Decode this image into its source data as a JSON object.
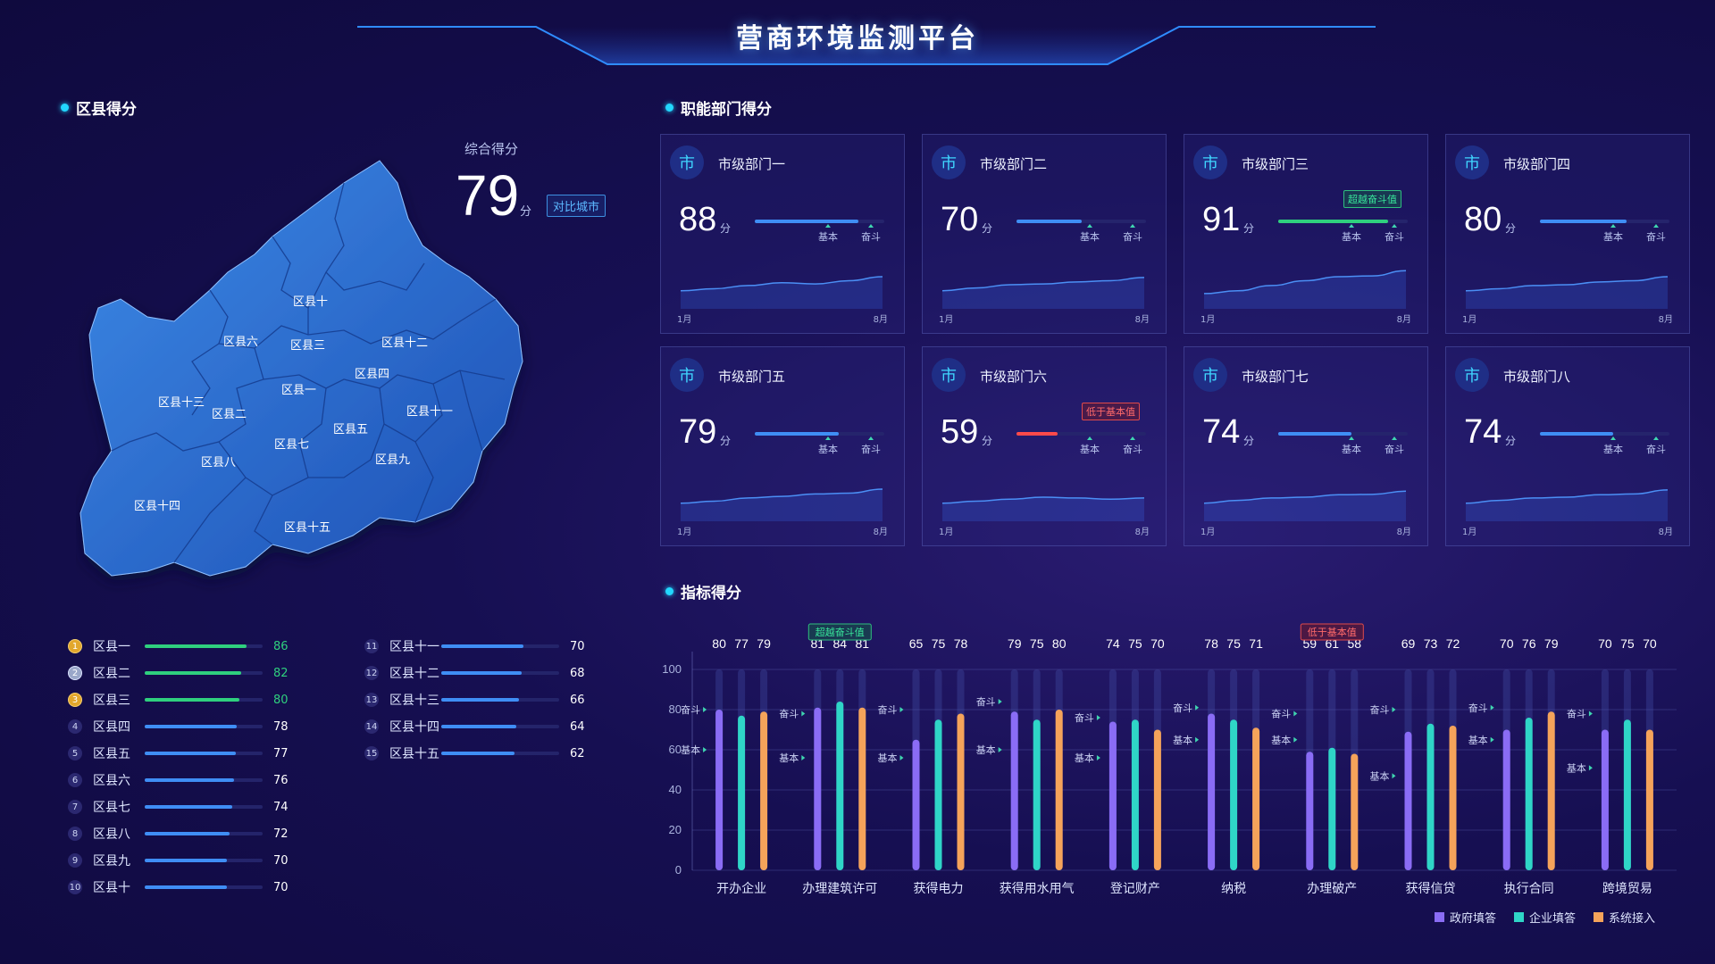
{
  "header": {
    "title": "营商环境监测平台"
  },
  "district_section": {
    "title": "区县得分",
    "overall_label": "综合得分",
    "overall_score": "79",
    "unit": "分",
    "compare_button": "对比城市",
    "map_labels": [
      "区县一",
      "区县二",
      "区县三",
      "区县四",
      "区县五",
      "区县六",
      "区县七",
      "区县八",
      "区县九",
      "区县十",
      "区县十一",
      "区县十二",
      "区县十三",
      "区县十四",
      "区县十五"
    ],
    "ranking": [
      {
        "rank": "1",
        "name": "区县一",
        "score": 86
      },
      {
        "rank": "2",
        "name": "区县二",
        "score": 82
      },
      {
        "rank": "3",
        "name": "区县三",
        "score": 80
      },
      {
        "rank": "4",
        "name": "区县四",
        "score": 78
      },
      {
        "rank": "5",
        "name": "区县五",
        "score": 77
      },
      {
        "rank": "6",
        "name": "区县六",
        "score": 76
      },
      {
        "rank": "7",
        "name": "区县七",
        "score": 74
      },
      {
        "rank": "8",
        "name": "区县八",
        "score": 72
      },
      {
        "rank": "9",
        "name": "区县九",
        "score": 70
      },
      {
        "rank": "10",
        "name": "区县十",
        "score": 70
      },
      {
        "rank": "11",
        "name": "区县十一",
        "score": 70
      },
      {
        "rank": "12",
        "name": "区县十二",
        "score": 68
      },
      {
        "rank": "13",
        "name": "区县十三",
        "score": 66
      },
      {
        "rank": "14",
        "name": "区县十四",
        "score": 64
      },
      {
        "rank": "15",
        "name": "区县十五",
        "score": 62
      }
    ],
    "colors": {
      "top": "#2fd07e",
      "normal": "#3f8ef5"
    }
  },
  "dept_section": {
    "title": "职能部门得分",
    "icon_char": "市",
    "unit": "分",
    "mark_basic": "基本",
    "mark_strive": "奋斗",
    "month_start": "1月",
    "month_end": "8月",
    "cards": [
      {
        "name": "市级部门一",
        "score": 88,
        "status": "normal",
        "badge": ""
      },
      {
        "name": "市级部门二",
        "score": 70,
        "status": "normal",
        "badge": ""
      },
      {
        "name": "市级部门三",
        "score": 91,
        "status": "above",
        "badge": "超越奋斗值"
      },
      {
        "name": "市级部门四",
        "score": 80,
        "status": "normal",
        "badge": ""
      },
      {
        "name": "市级部门五",
        "score": 79,
        "status": "normal",
        "badge": ""
      },
      {
        "name": "市级部门六",
        "score": 59,
        "status": "below",
        "badge": "低于基本值"
      },
      {
        "name": "市级部门七",
        "score": 74,
        "status": "normal",
        "badge": ""
      },
      {
        "name": "市级部门八",
        "score": 74,
        "status": "normal",
        "badge": ""
      }
    ],
    "colors": {
      "normal": "#3f8ef5",
      "above": "#2fd07e",
      "below": "#ff4a4a"
    }
  },
  "indicator_section": {
    "title": "指标得分",
    "chart_data": {
      "type": "bar",
      "categories": [
        "开办企业",
        "办理建筑许可",
        "获得电力",
        "获得用水用气",
        "登记财产",
        "纳税",
        "办理破产",
        "获得信贷",
        "执行合同",
        "跨境贸易"
      ],
      "series": [
        {
          "name": "政府填答",
          "color": "#8a6cf5",
          "values": [
            80,
            81,
            65,
            79,
            74,
            78,
            59,
            69,
            70,
            70
          ]
        },
        {
          "name": "企业填答",
          "color": "#2fd5c7",
          "values": [
            77,
            84,
            75,
            75,
            75,
            75,
            61,
            73,
            76,
            75
          ]
        },
        {
          "name": "系统接入",
          "color": "#f5a35a",
          "values": [
            79,
            81,
            78,
            80,
            70,
            71,
            58,
            72,
            79,
            70
          ]
        }
      ],
      "ylim": [
        0,
        100
      ],
      "yticks": [
        0,
        20,
        40,
        60,
        80,
        100
      ],
      "strive": [
        80,
        78,
        80,
        84,
        76,
        81,
        78,
        80,
        81,
        78
      ],
      "basic": [
        60,
        56,
        56,
        60,
        56,
        65,
        65,
        47,
        65,
        51
      ],
      "strive_label": "奋斗",
      "basic_label": "基本",
      "badges": [
        {
          "category_index": 1,
          "text": "超越奋斗值",
          "kind": "above"
        },
        {
          "category_index": 6,
          "text": "低于基本值",
          "kind": "below"
        }
      ],
      "legend_position": "bottom-right",
      "grid": true
    }
  }
}
